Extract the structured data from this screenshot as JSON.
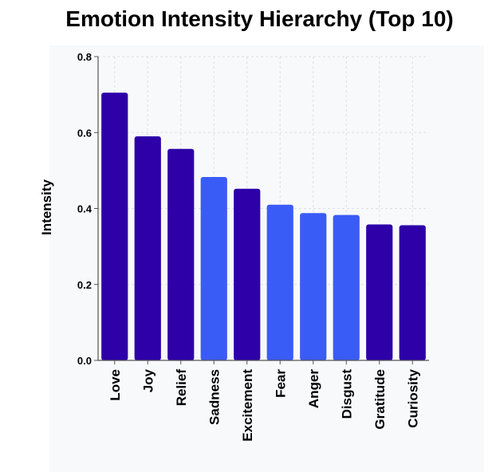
{
  "chart_data": {
    "type": "bar",
    "title": "Emotion Intensity Hierarchy (Top 10)",
    "xlabel": "",
    "ylabel": "Intensity",
    "ylim": [
      0,
      0.8
    ],
    "yticks": [
      {
        "value": 0.0,
        "label": "0.0"
      },
      {
        "value": 0.2,
        "label": "0.2"
      },
      {
        "value": 0.4,
        "label": "0.4"
      },
      {
        "value": 0.6,
        "label": "0.6"
      },
      {
        "value": 0.8,
        "label": "0.8"
      }
    ],
    "grid": true,
    "categories": [
      "Love",
      "Joy",
      "Relief",
      "Sadness",
      "Excitement",
      "Fear",
      "Anger",
      "Disgust",
      "Gratitude",
      "Curiosity"
    ],
    "values": [
      0.705,
      0.59,
      0.557,
      0.483,
      0.452,
      0.41,
      0.388,
      0.383,
      0.358,
      0.356
    ],
    "colors": [
      "#2d00a8",
      "#2d00a8",
      "#2d00a8",
      "#3a5cf6",
      "#2d00a8",
      "#3a5cf6",
      "#3a5cf6",
      "#3a5cf6",
      "#2d00a8",
      "#2d00a8"
    ]
  }
}
